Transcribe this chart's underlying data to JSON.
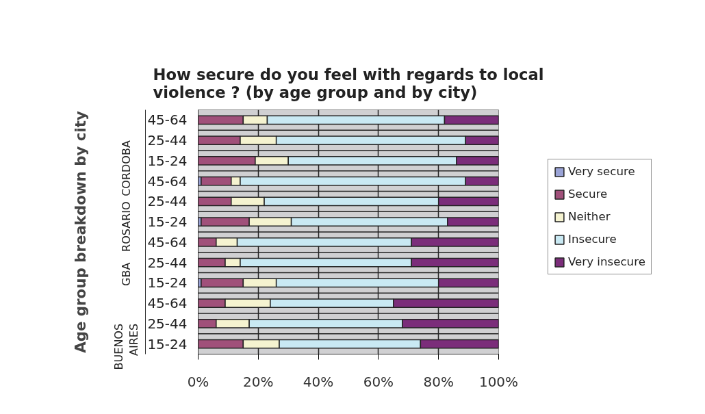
{
  "chart_data": {
    "type": "bar",
    "orientation": "horizontal",
    "stacked": true,
    "title": "How secure do you feel with regards to local violence ? (by age group and by city)",
    "ylabel": "Age group breakdown by city",
    "categories": [
      "45-64",
      "25-44",
      "15-24",
      "45-64",
      "25-44",
      "15-24",
      "45-64",
      "25-44",
      "15-24",
      "45-64",
      "25-44",
      "15-24"
    ],
    "annotations": [
      "CORDOBA",
      "ROSARIO",
      "GBA",
      "BUENOS AIRES"
    ],
    "series": [
      {
        "name": "Very secure",
        "color": "#9aa3d6",
        "values": [
          0,
          0,
          0,
          1,
          0,
          1,
          0,
          0,
          1,
          0,
          0,
          0
        ]
      },
      {
        "name": "Secure",
        "color": "#a0507a",
        "values": [
          15,
          14,
          19,
          10,
          11,
          16,
          6,
          9,
          14,
          9,
          6,
          15
        ]
      },
      {
        "name": "Neither",
        "color": "#f5f3d0",
        "values": [
          8,
          12,
          11,
          3,
          11,
          14,
          7,
          5,
          11,
          15,
          11,
          12
        ]
      },
      {
        "name": "Insecure",
        "color": "#c9e9f3",
        "values": [
          59,
          63,
          56,
          75,
          58,
          52,
          58,
          57,
          54,
          41,
          51,
          47
        ]
      },
      {
        "name": "Very insecure",
        "color": "#7b2d7a",
        "values": [
          18,
          11,
          14,
          11,
          20,
          17,
          29,
          29,
          20,
          35,
          32,
          26
        ]
      }
    ],
    "xlim": [
      0,
      100
    ],
    "xticks": [
      {
        "value": 0,
        "label": "0%"
      },
      {
        "value": 20,
        "label": "20%"
      },
      {
        "value": 40,
        "label": "40%"
      },
      {
        "value": 60,
        "label": "60%"
      },
      {
        "value": 80,
        "label": "80%"
      },
      {
        "value": 100,
        "label": "100%"
      }
    ],
    "grid": "x",
    "legend": "right"
  }
}
